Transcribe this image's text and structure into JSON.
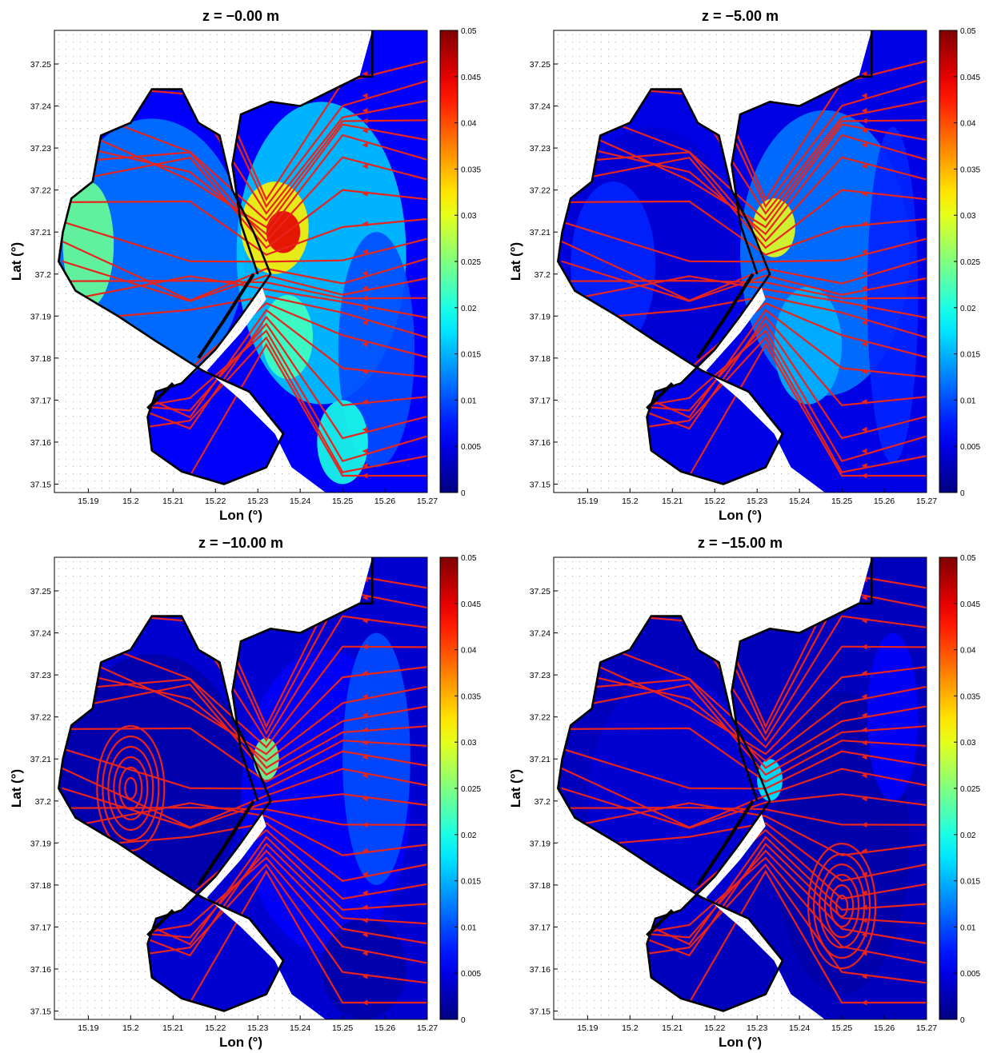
{
  "figure": {
    "panels": [
      {
        "title": "z = −0.00 m",
        "depth": 0
      },
      {
        "title": "z = −5.00 m",
        "depth": 5
      },
      {
        "title": "z = −10.00 m",
        "depth": 10
      },
      {
        "title": "z = −15.00 m",
        "depth": 15
      }
    ],
    "xlabel": "Lon (°)",
    "ylabel": "Lat (°)",
    "xticks": [
      "15.19",
      "15.2",
      "15.21",
      "15.22",
      "15.23",
      "15.24",
      "15.25",
      "15.26",
      "15.27"
    ],
    "yticks": [
      "37.25",
      "37.24",
      "37.23",
      "37.22",
      "37.21",
      "37.2",
      "37.19",
      "37.18",
      "37.17",
      "37.16",
      "37.15"
    ],
    "colorbar_ticks": [
      "0.05",
      "0.045",
      "0.04",
      "0.035",
      "0.03",
      "0.025",
      "0.02",
      "0.015",
      "0.01",
      "0.005",
      "0"
    ],
    "colormap": "jet",
    "streamline_color": "#e8241c",
    "coastline_color": "#000000"
  },
  "chart_data": {
    "type": "heatmap",
    "xlim": [
      15.182,
      15.27
    ],
    "ylim": [
      37.148,
      37.258
    ],
    "clim": [
      0,
      0.05
    ],
    "colorbar_ticks": [
      0,
      0.005,
      0.01,
      0.015,
      0.02,
      0.025,
      0.03,
      0.035,
      0.04,
      0.045,
      0.05
    ],
    "overlay": "streamlines and velocity arrows"
  }
}
